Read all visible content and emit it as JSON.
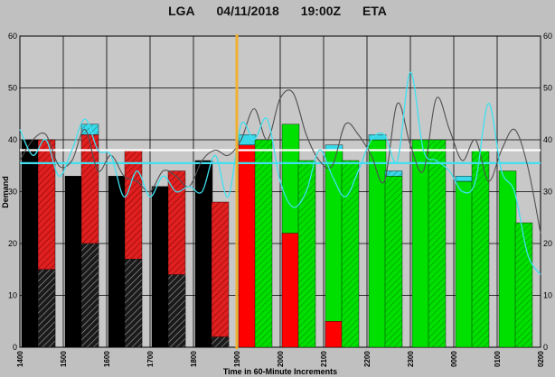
{
  "header": {
    "airport": "LGA",
    "date": "04/11/2018",
    "time": "19:00Z",
    "mode": "ETA"
  },
  "colors": {
    "background": "#c0c0c0",
    "plot_background": "#c8c8c8",
    "past_actual": "#000000",
    "past_scheduled": "#e02020",
    "future_actual": "#ff0000",
    "future_scheduled": "#00e000",
    "exceed": "#38d8e8",
    "current_time_marker": "#f0b030",
    "cyan_line": "#40e0f0",
    "gray_line": "#505050",
    "white_line": "#ffffff"
  },
  "chart_data": {
    "type": "bar",
    "title": "",
    "xlabel": "Time in 60-Minute Increments",
    "ylabel": "Demand",
    "ylim": [
      0,
      60
    ],
    "yticks": [
      0,
      10,
      20,
      30,
      40,
      50,
      60
    ],
    "x_tick_labels": [
      "1400",
      "1500",
      "1600",
      "1700",
      "1800",
      "1900",
      "2000",
      "2100",
      "2200",
      "2300",
      "0000",
      "0100",
      "0200"
    ],
    "current_time": "1900",
    "grid": true,
    "reference_lines": [
      {
        "color": "white",
        "value": 38
      },
      {
        "color": "cyan",
        "value": 35.5
      }
    ],
    "bars": [
      {
        "slot": 0,
        "type": "solid",
        "color": "black",
        "total": 40,
        "overlay": null,
        "cap": 0
      },
      {
        "slot": 0,
        "type": "hatched",
        "color": "red",
        "total": 40,
        "overlay": {
          "color": "black",
          "value": 15
        },
        "cap": 0
      },
      {
        "slot": 1,
        "type": "solid",
        "color": "black",
        "total": 33,
        "overlay": null,
        "cap": 0
      },
      {
        "slot": 1,
        "type": "hatched",
        "color": "red",
        "total": 41,
        "overlay": {
          "color": "black",
          "value": 20
        },
        "cap": 2
      },
      {
        "slot": 2,
        "type": "solid",
        "color": "black",
        "total": 33,
        "overlay": null,
        "cap": 0
      },
      {
        "slot": 2,
        "type": "hatched",
        "color": "red",
        "total": 38,
        "overlay": {
          "color": "black",
          "value": 17
        },
        "cap": 0
      },
      {
        "slot": 3,
        "type": "solid",
        "color": "black",
        "total": 31,
        "overlay": null,
        "cap": 0
      },
      {
        "slot": 3,
        "type": "hatched",
        "color": "red",
        "total": 34,
        "overlay": {
          "color": "black",
          "value": 14
        },
        "cap": 0
      },
      {
        "slot": 4,
        "type": "solid",
        "color": "black",
        "total": 36,
        "overlay": null,
        "cap": 0
      },
      {
        "slot": 4,
        "type": "hatched",
        "color": "red",
        "total": 28,
        "overlay": {
          "color": "black",
          "value": 2
        },
        "cap": 0
      },
      {
        "slot": 5,
        "type": "solid",
        "color": "red",
        "total": 39,
        "overlay": null,
        "cap": 2
      },
      {
        "slot": 5,
        "type": "hatched",
        "color": "green",
        "total": 40,
        "overlay": null,
        "cap": 0
      },
      {
        "slot": 6,
        "type": "solid",
        "color": "green",
        "total": 43,
        "overlay": {
          "color": "red",
          "value": 22
        },
        "cap": 0
      },
      {
        "slot": 6,
        "type": "hatched",
        "color": "green",
        "total": 36,
        "overlay": null,
        "cap": 0
      },
      {
        "slot": 7,
        "type": "solid",
        "color": "green",
        "total": 38,
        "overlay": {
          "color": "red",
          "value": 5
        },
        "cap": 1
      },
      {
        "slot": 7,
        "type": "hatched",
        "color": "green",
        "total": 36,
        "overlay": null,
        "cap": 0
      },
      {
        "slot": 8,
        "type": "solid",
        "color": "green",
        "total": 40,
        "overlay": null,
        "cap": 1
      },
      {
        "slot": 8,
        "type": "hatched",
        "color": "green",
        "total": 33,
        "overlay": null,
        "cap": 1
      },
      {
        "slot": 9,
        "type": "solid",
        "color": "green",
        "total": 40,
        "overlay": null,
        "cap": 0
      },
      {
        "slot": 9,
        "type": "hatched",
        "color": "green",
        "total": 40,
        "overlay": null,
        "cap": 0
      },
      {
        "slot": 10,
        "type": "solid",
        "color": "green",
        "total": 32,
        "overlay": null,
        "cap": 1
      },
      {
        "slot": 10,
        "type": "hatched",
        "color": "green",
        "total": 38,
        "overlay": null,
        "cap": 0
      },
      {
        "slot": 11,
        "type": "solid",
        "color": "green",
        "total": 34,
        "overlay": null,
        "cap": 0
      },
      {
        "slot": 11,
        "type": "hatched",
        "color": "green",
        "total": 24,
        "overlay": null,
        "cap": 0
      }
    ],
    "series": [
      {
        "color": "gray",
        "x": [
          0,
          0.3,
          0.6,
          0.9,
          1.2,
          1.5,
          1.8,
          2.1,
          2.4,
          2.7,
          3.0,
          3.3,
          3.6,
          3.9,
          4.2,
          4.5,
          4.8,
          5.1,
          5.4,
          5.7,
          6.0,
          6.3,
          6.6,
          6.9,
          7.2,
          7.5,
          7.8,
          8.1,
          8.4,
          8.7,
          9.0,
          9.3,
          9.6,
          9.9,
          10.2,
          10.5,
          10.8,
          11.1,
          11.4,
          11.7,
          12.0
        ],
        "y": [
          36,
          40,
          41,
          35,
          36,
          42,
          34,
          37,
          33,
          32,
          30,
          34,
          33,
          31,
          36,
          38,
          37,
          40,
          46,
          40,
          48,
          49,
          41,
          36,
          35,
          43,
          41,
          37,
          32,
          47,
          39,
          34,
          48,
          42,
          36,
          40,
          32,
          38,
          42,
          35,
          22
        ]
      },
      {
        "color": "cyan",
        "x": [
          0,
          0.3,
          0.6,
          0.9,
          1.2,
          1.5,
          1.8,
          2.1,
          2.4,
          2.7,
          3.0,
          3.3,
          3.6,
          3.9,
          4.2,
          4.5,
          4.8,
          5.1,
          5.4,
          5.7,
          6.0,
          6.3,
          6.6,
          6.9,
          7.2,
          7.5,
          7.8,
          8.1,
          8.4,
          8.7,
          9.0,
          9.3,
          9.6,
          9.9,
          10.2,
          10.5,
          10.8,
          11.1,
          11.4,
          11.7,
          12.0
        ],
        "y": [
          42,
          37,
          40,
          33,
          38,
          44,
          38,
          37,
          29,
          34,
          29,
          33,
          30,
          31,
          30,
          37,
          29,
          43,
          40,
          44,
          32,
          27,
          30,
          38,
          33,
          29,
          34,
          40,
          41,
          36,
          53,
          38,
          36,
          34,
          30,
          32,
          47,
          34,
          30,
          18,
          14
        ]
      }
    ]
  }
}
